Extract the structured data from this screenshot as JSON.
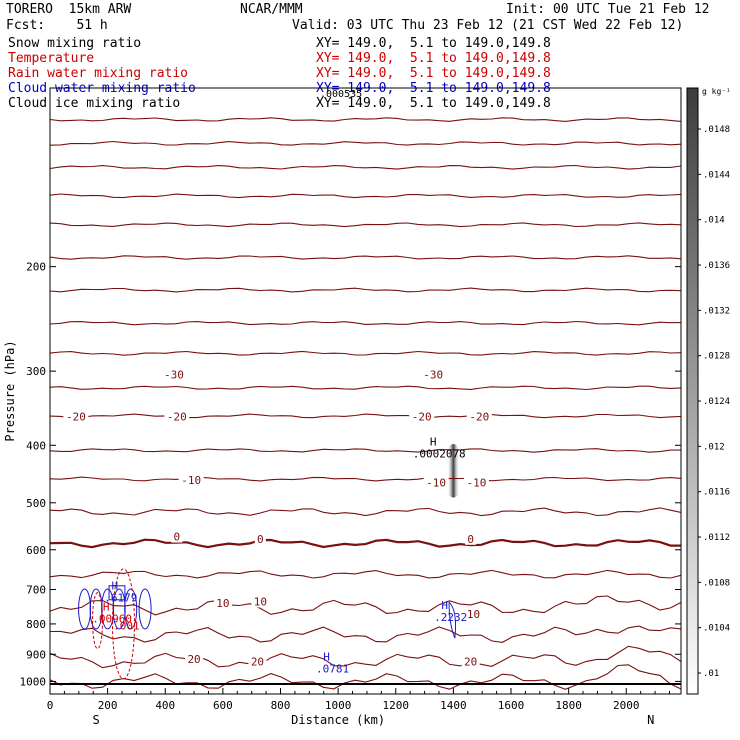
{
  "header": {
    "model": "TORERO  15km ARW",
    "forecast": "Fcst:    51 h",
    "center": "NCAR/MMM",
    "init": "Init: 00 UTC Tue 21 Feb 12",
    "valid": "Valid: 03 UTC Thu 23 Feb 12 (21 CST Wed 22 Feb 12)"
  },
  "fields": [
    {
      "name": "Snow mixing ratio",
      "xy": "XY= 149.0,  5.1 to 149.0,149.8",
      "color": "#000000"
    },
    {
      "name": "Temperature",
      "xy": "XY= 149.0,  5.1 to 149.0,149.8",
      "color": "#cc0000"
    },
    {
      "name": "Rain water mixing ratio",
      "xy": "XY= 149.0,  5.1 to 149.0,149.8",
      "color": "#cc0000"
    },
    {
      "name": "Cloud water mixing ratio",
      "xy": "XY= 149.0,  5.1 to 149.0,149.8",
      "color": "#0000cc"
    },
    {
      "name": "Cloud ice mixing ratio",
      "xy": "XY= 149.0,  5.1 to 149.0,149.8",
      "color": "#000000"
    }
  ],
  "overlap_text": ".000535",
  "chart_data": {
    "type": "cross-section",
    "xlabel": "Distance (km)",
    "ylabel": "Pressure (hPa)",
    "xlim": [
      0,
      2190
    ],
    "ylim": [
      1050,
      100
    ],
    "xticks": [
      0,
      200,
      400,
      600,
      800,
      1000,
      1200,
      1400,
      1600,
      1800,
      2000
    ],
    "yticks": [
      200,
      300,
      400,
      500,
      600,
      700,
      800,
      900,
      1000
    ],
    "x_endpoints": {
      "left": "S",
      "right": "N"
    },
    "shading_units": "g kg⁻¹",
    "colorbar_ticks": [
      ".01",
      ".0104",
      ".0108",
      ".0112",
      ".0116",
      ".012",
      ".0124",
      ".0128",
      ".0132",
      ".0136",
      ".014",
      ".0144",
      ".0148"
    ],
    "colors": {
      "temperature": "#7a1010",
      "rain": "#cc0000",
      "cloud_water": "#1a1acc",
      "ice": "#000000"
    },
    "temperature_contours": [
      {
        "p": 113
      },
      {
        "p": 124
      },
      {
        "p": 136
      },
      {
        "p": 152
      },
      {
        "p": 170
      },
      {
        "p": 193
      },
      {
        "p": 219
      },
      {
        "p": 249
      },
      {
        "p": 280
      },
      {
        "p": 320
      },
      {
        "p": 357
      },
      {
        "p": 408
      },
      {
        "p": 456
      },
      {
        "p": 518
      },
      {
        "p": 585
      },
      {
        "p": 660
      },
      {
        "p": 750
      },
      {
        "p": 835
      },
      {
        "p": 922
      },
      {
        "p": 1000
      }
    ],
    "labels": [
      {
        "text": "-30",
        "x": 430,
        "p": 304
      },
      {
        "text": "-30",
        "x": 1330,
        "p": 304
      },
      {
        "text": "-20",
        "x": 90,
        "p": 358
      },
      {
        "text": "-20",
        "x": 440,
        "p": 358
      },
      {
        "text": "-20",
        "x": 1290,
        "p": 358
      },
      {
        "text": "-20",
        "x": 1490,
        "p": 358
      },
      {
        "text": "-10",
        "x": 490,
        "p": 458
      },
      {
        "text": "-10",
        "x": 1340,
        "p": 462
      },
      {
        "text": "-10",
        "x": 1480,
        "p": 462
      },
      {
        "text": "0",
        "x": 440,
        "p": 570
      },
      {
        "text": "0",
        "x": 730,
        "p": 575
      },
      {
        "text": "0",
        "x": 1460,
        "p": 575
      },
      {
        "text": "10",
        "x": 600,
        "p": 738
      },
      {
        "text": "10",
        "x": 730,
        "p": 733
      },
      {
        "text": "10",
        "x": 1470,
        "p": 770
      },
      {
        "text": "20",
        "x": 500,
        "p": 917
      },
      {
        "text": "20",
        "x": 720,
        "p": 925
      },
      {
        "text": "20",
        "x": 1460,
        "p": 925
      }
    ],
    "extrema": [
      {
        "letter": "H",
        "value": ".0002078",
        "x": 1330,
        "p": 400,
        "color": "#000000"
      },
      {
        "letter": "H",
        "value": ".6179",
        "x": 225,
        "p": 700,
        "color": "#1a1acc"
      },
      {
        "letter": "H",
        "value": ".00960",
        "x": 195,
        "p": 760,
        "color": "#cc0000"
      },
      {
        "letter": "H",
        "value": ".2232",
        "x": 1370,
        "p": 755,
        "color": "#1a1acc"
      },
      {
        "letter": "H",
        "value": ".0781",
        "x": 960,
        "p": 922,
        "color": "#1a1acc"
      }
    ],
    "rain_label": {
      "text": ".001",
      "x": 265,
      "p": 818
    }
  }
}
